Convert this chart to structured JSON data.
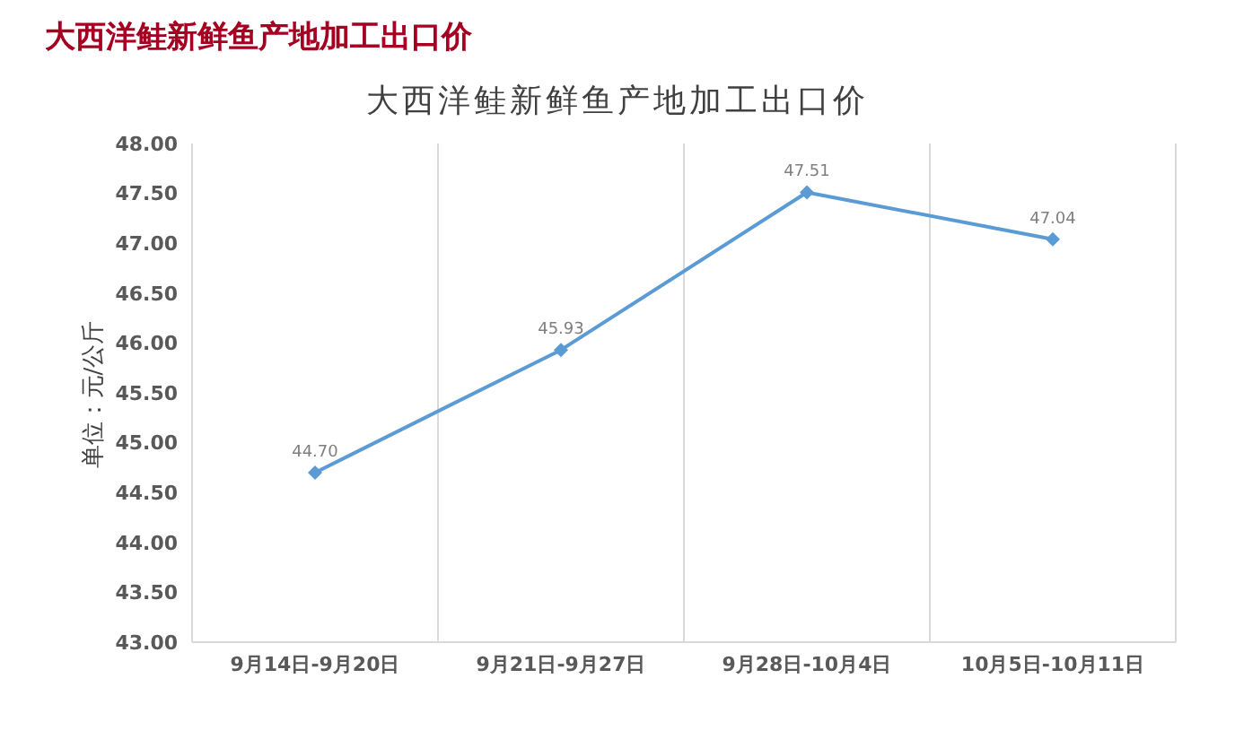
{
  "chart_data": {
    "type": "line",
    "title": "大西洋鲑新鲜鱼产地加工出口价",
    "subtitle": "大西洋鲑新鲜鱼产地加工出口价",
    "ylabel": "单位：元/公斤",
    "categories": [
      "9月14日-9月20日",
      "9月21日-9月27日",
      "9月28日-10月4日",
      "10月5日-10月11日"
    ],
    "series": [
      {
        "color": "#5b9bd5",
        "values": [
          44.7,
          45.93,
          47.51,
          47.04
        ],
        "value_labels": [
          "44.70",
          "45.93",
          "47.51",
          "47.04"
        ]
      }
    ],
    "ylim": [
      43,
      48
    ],
    "yticks": [
      {
        "value": 43,
        "label": "43.00"
      },
      {
        "value": 43.5,
        "label": "43.50"
      },
      {
        "value": 44,
        "label": "44.00"
      },
      {
        "value": 44.5,
        "label": "44.50"
      },
      {
        "value": 45,
        "label": "45.00"
      },
      {
        "value": 45.5,
        "label": "45.50"
      },
      {
        "value": 46,
        "label": "46.00"
      },
      {
        "value": 46.5,
        "label": "46.50"
      },
      {
        "value": 47,
        "label": "47.00"
      },
      {
        "value": 47.5,
        "label": "47.50"
      },
      {
        "value": 48,
        "label": "48.00"
      }
    ],
    "grid": "x",
    "legend": false,
    "marker": "diamond",
    "line_style": "solid"
  }
}
